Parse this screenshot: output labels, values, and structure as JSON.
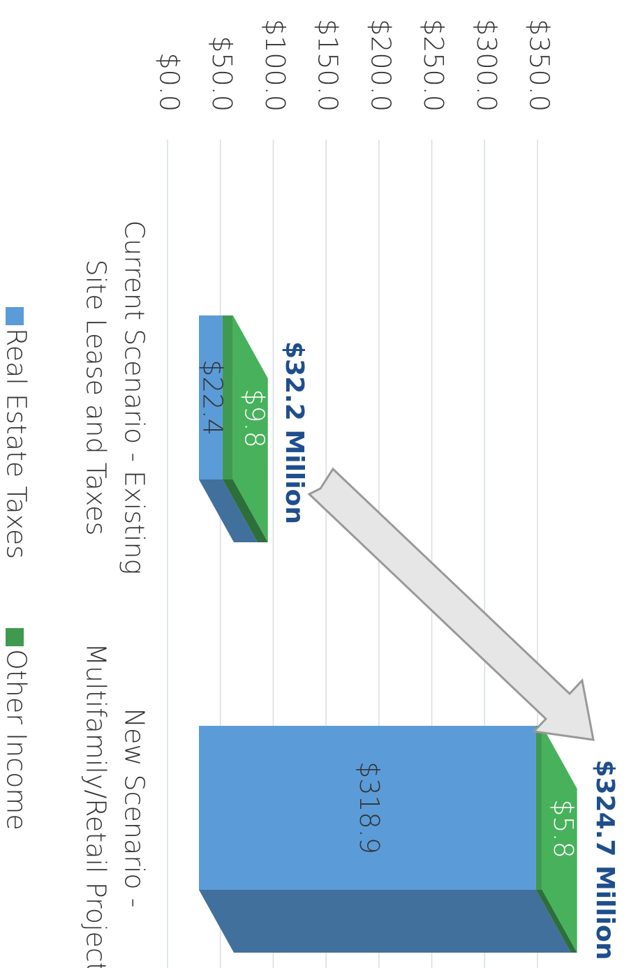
{
  "chart_data": {
    "type": "bar",
    "stacked": true,
    "categories": [
      [
        "Current Scenario - Existing",
        "Site Lease and Taxes"
      ],
      [
        "New Scenario -",
        "Multifamily/Retail Project"
      ]
    ],
    "series": [
      {
        "name": "Real Estate Taxes",
        "color": "#5b9bd8",
        "values": [
          22.4,
          318.9
        ],
        "value_labels": [
          "$22.4",
          "$318.9"
        ]
      },
      {
        "name": "Other Income",
        "color": "#3f9a50",
        "values": [
          9.8,
          5.8
        ],
        "value_labels": [
          "$9.8",
          "$5.8"
        ]
      }
    ],
    "annotations": [
      "$32.2 Million",
      "$324.7 Million"
    ],
    "ylim": [
      0,
      350
    ],
    "yticks": [
      {
        "value": 0,
        "label": "$0.0"
      },
      {
        "value": 50,
        "label": "$50.0"
      },
      {
        "value": 100,
        "label": "$100.0"
      },
      {
        "value": 150,
        "label": "$150.0"
      },
      {
        "value": 200,
        "label": "$200.0"
      },
      {
        "value": 250,
        "label": "$250.0"
      },
      {
        "value": 300,
        "label": "$300.0"
      },
      {
        "value": 350,
        "label": "$350.0"
      }
    ],
    "grid": true
  }
}
